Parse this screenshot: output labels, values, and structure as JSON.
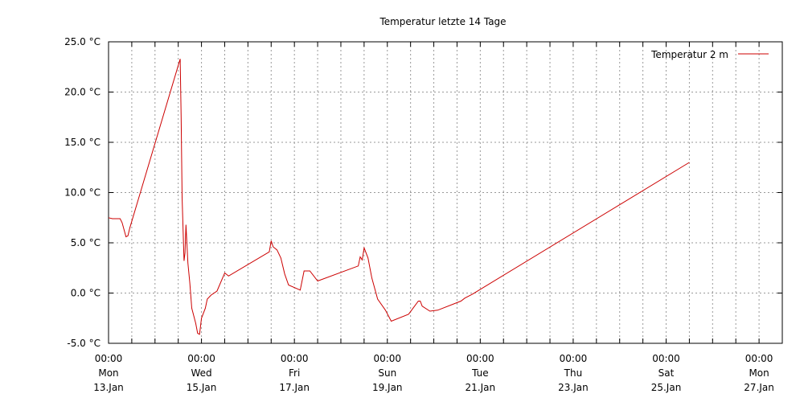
{
  "chart_data": {
    "type": "line",
    "title": "Temperatur letzte 14 Tage",
    "xlabel": "",
    "ylabel": "",
    "y_unit": "°C",
    "ylim": [
      -5.0,
      25.0
    ],
    "y_ticks": [
      -5.0,
      0.0,
      5.0,
      10.0,
      15.0,
      20.0,
      25.0
    ],
    "y_tick_labels": [
      "-5.0 °C",
      "0.0 °C",
      "5.0 °C",
      "10.0 °C",
      "15.0 °C",
      "20.0 °C",
      "25.0 °C"
    ],
    "xlim": [
      "2025-01-13 00:00",
      "2025-01-27 12:00"
    ],
    "x_ticks": [
      {
        "x": "2025-01-13 00:00",
        "time": "00:00",
        "weekday": "Mon",
        "date": "13.Jan"
      },
      {
        "x": "2025-01-15 00:00",
        "time": "00:00",
        "weekday": "Wed",
        "date": "15.Jan"
      },
      {
        "x": "2025-01-17 00:00",
        "time": "00:00",
        "weekday": "Fri",
        "date": "17.Jan"
      },
      {
        "x": "2025-01-19 00:00",
        "time": "00:00",
        "weekday": "Sun",
        "date": "19.Jan"
      },
      {
        "x": "2025-01-21 00:00",
        "time": "00:00",
        "weekday": "Tue",
        "date": "21.Jan"
      },
      {
        "x": "2025-01-23 00:00",
        "time": "00:00",
        "weekday": "Thu",
        "date": "23.Jan"
      },
      {
        "x": "2025-01-25 00:00",
        "time": "00:00",
        "weekday": "Sat",
        "date": "25.Jan"
      },
      {
        "x": "2025-01-27 00:00",
        "time": "00:00",
        "weekday": "Mon",
        "date": "27.Jan"
      }
    ],
    "grid": true,
    "legend_position": "top-right",
    "series": [
      {
        "name": "Temperatur 2 m",
        "color": "#cc0000",
        "points": [
          [
            "2025-01-13 00:00",
            7.5
          ],
          [
            "2025-01-13 02:00",
            7.4
          ],
          [
            "2025-01-13 04:00",
            7.4
          ],
          [
            "2025-01-13 06:00",
            7.4
          ],
          [
            "2025-01-13 07:00",
            7.0
          ],
          [
            "2025-01-13 09:00",
            5.6
          ],
          [
            "2025-01-13 10:00",
            5.7
          ],
          [
            "2025-01-13 11:00",
            6.5
          ],
          [
            "2025-01-14 13:00",
            23.3
          ],
          [
            "2025-01-14 13:30",
            17.5
          ],
          [
            "2025-01-14 14:00",
            9.5
          ],
          [
            "2025-01-14 15:00",
            3.2
          ],
          [
            "2025-01-14 15:30",
            4.0
          ],
          [
            "2025-01-14 16:00",
            6.8
          ],
          [
            "2025-01-14 17:00",
            3.0
          ],
          [
            "2025-01-14 18:00",
            1.0
          ],
          [
            "2025-01-14 19:00",
            -1.5
          ],
          [
            "2025-01-14 21:00",
            -3.0
          ],
          [
            "2025-01-14 22:00",
            -4.0
          ],
          [
            "2025-01-14 23:00",
            -4.1
          ],
          [
            "2025-01-15 00:00",
            -2.5
          ],
          [
            "2025-01-15 02:00",
            -1.5
          ],
          [
            "2025-01-15 03:00",
            -0.6
          ],
          [
            "2025-01-15 05:00",
            -0.2
          ],
          [
            "2025-01-15 08:00",
            0.2
          ],
          [
            "2025-01-15 12:00",
            2.0
          ],
          [
            "2025-01-15 14:00",
            1.7
          ],
          [
            "2025-01-16 11:00",
            4.1
          ],
          [
            "2025-01-16 12:00",
            5.2
          ],
          [
            "2025-01-16 13:00",
            4.6
          ],
          [
            "2025-01-16 15:00",
            4.3
          ],
          [
            "2025-01-16 17:00",
            3.5
          ],
          [
            "2025-01-16 19:00",
            1.9
          ],
          [
            "2025-01-16 21:00",
            0.8
          ],
          [
            "2025-01-17 03:00",
            0.3
          ],
          [
            "2025-01-17 05:00",
            2.2
          ],
          [
            "2025-01-17 08:00",
            2.2
          ],
          [
            "2025-01-17 12:00",
            1.2
          ],
          [
            "2025-01-18 09:00",
            2.7
          ],
          [
            "2025-01-18 10:00",
            3.6
          ],
          [
            "2025-01-18 11:00",
            3.3
          ],
          [
            "2025-01-18 12:00",
            4.5
          ],
          [
            "2025-01-18 14:00",
            3.5
          ],
          [
            "2025-01-18 16:00",
            1.5
          ],
          [
            "2025-01-18 19:00",
            -0.6
          ],
          [
            "2025-01-18 23:00",
            -1.7
          ],
          [
            "2025-01-19 02:00",
            -2.8
          ],
          [
            "2025-01-19 11:00",
            -2.1
          ],
          [
            "2025-01-19 16:00",
            -0.8
          ],
          [
            "2025-01-19 17:00",
            -0.8
          ],
          [
            "2025-01-19 18:00",
            -1.3
          ],
          [
            "2025-01-19 22:00",
            -1.8
          ],
          [
            "2025-01-20 02:00",
            -1.7
          ],
          [
            "2025-01-20 14:00",
            -0.8
          ],
          [
            "2025-01-20 16:00",
            -0.5
          ],
          [
            "2025-01-20 20:00",
            -0.1
          ],
          [
            "2025-01-25 12:00",
            13.0
          ]
        ]
      }
    ]
  }
}
